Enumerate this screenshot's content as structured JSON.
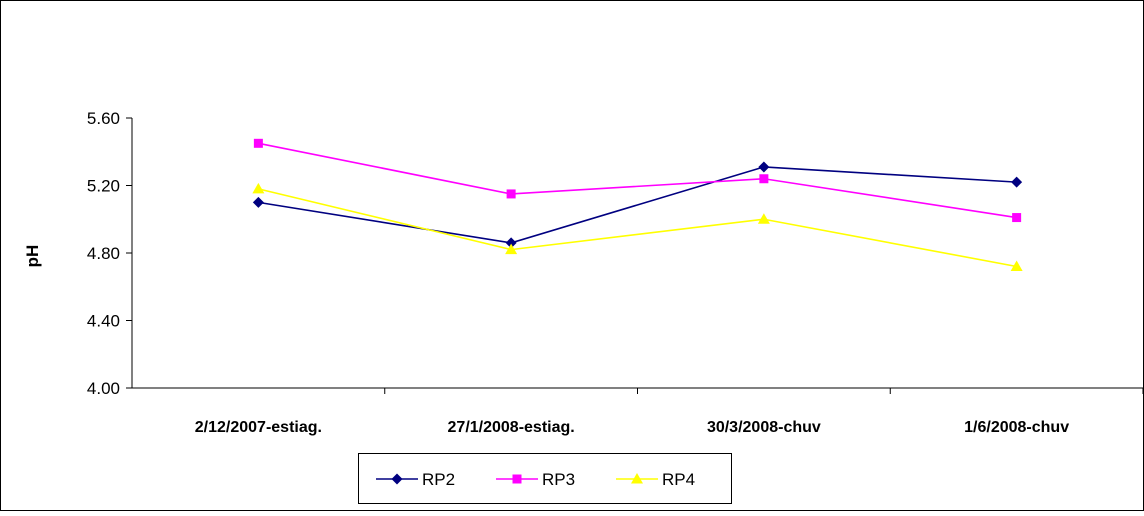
{
  "chart_data": {
    "type": "line",
    "title": "",
    "xlabel": "",
    "ylabel": "pH",
    "ylim": [
      4.0,
      5.6
    ],
    "yticks": [
      "4.00",
      "4.40",
      "4.80",
      "5.20",
      "5.60"
    ],
    "grid": false,
    "legend_position": "bottom",
    "categories": [
      "2/12/2007-estiag.",
      "27/1/2008-estiag.",
      "30/3/2008-chuv",
      "1/6/2008-chuv"
    ],
    "series": [
      {
        "name": "RP2",
        "values": [
          5.1,
          4.86,
          5.31,
          5.22
        ],
        "color": "#000080",
        "marker": "diamond"
      },
      {
        "name": "RP3",
        "values": [
          5.45,
          5.15,
          5.24,
          5.01
        ],
        "color": "#FF00FF",
        "marker": "square"
      },
      {
        "name": "RP4",
        "values": [
          5.18,
          4.82,
          5.0,
          4.72
        ],
        "color": "#FFFF00",
        "marker": "triangle"
      }
    ]
  }
}
